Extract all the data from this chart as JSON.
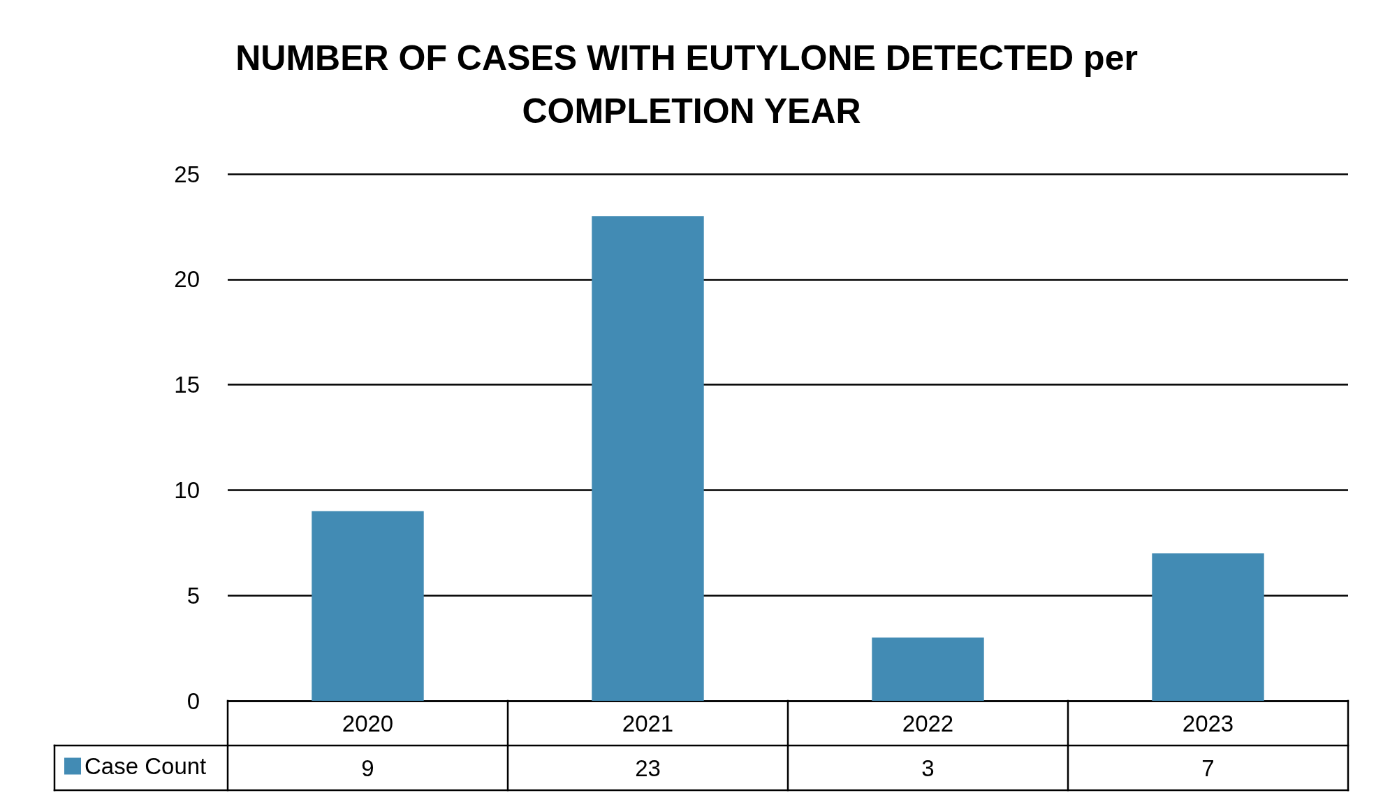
{
  "chart_data": {
    "type": "bar",
    "title": "NUMBER OF CASES WITH EUTYLONE DETECTED per COMPLETION YEAR",
    "categories": [
      "2020",
      "2021",
      "2022",
      "2023"
    ],
    "series": [
      {
        "name": "Case Count",
        "color": "#428bb4",
        "values": [
          9,
          23,
          3,
          7
        ]
      }
    ],
    "ylim": [
      0,
      25
    ],
    "yticks": [
      0,
      5,
      10,
      15,
      20,
      25
    ],
    "grid": "y",
    "legend": "bottom left",
    "data_labels": true
  }
}
